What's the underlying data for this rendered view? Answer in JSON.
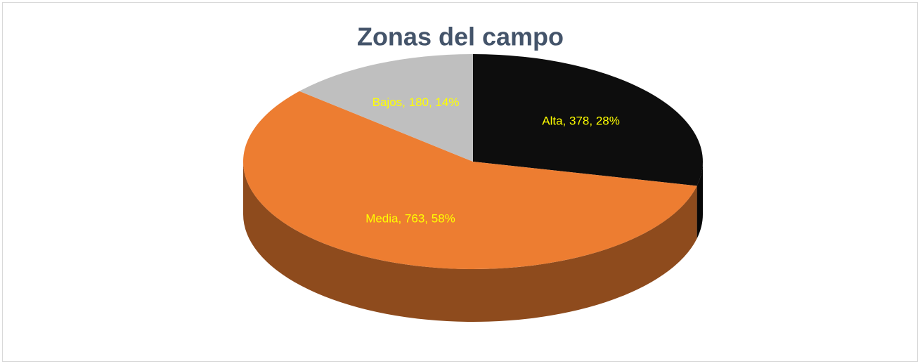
{
  "chart_data": {
    "type": "pie",
    "title": "Zonas del campo",
    "categories": [
      "Alta",
      "Media",
      "Bajos"
    ],
    "values": [
      378,
      763,
      180
    ],
    "value_labels": [
      "Alta, 378, 28%",
      "Media, 763, 58%",
      "Bajos, 180, 14%"
    ],
    "colors": [
      "#0d0d0d",
      "#ed7d31",
      "#bfbfbf"
    ],
    "label_color": "#ffff00"
  }
}
